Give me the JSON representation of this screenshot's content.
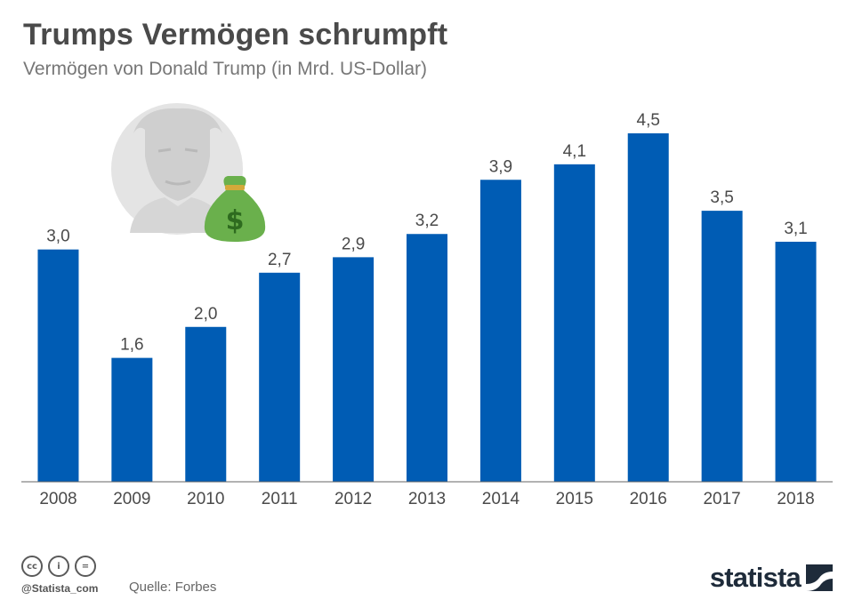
{
  "header": {
    "title": "Trumps Vermögen schrumpft",
    "subtitle": "Vermögen von Donald Trump (in Mrd. US-Dollar)"
  },
  "chart_data": {
    "type": "bar",
    "title": "Trumps Vermögen schrumpft",
    "subtitle": "Vermögen von Donald Trump (in Mrd. US-Dollar)",
    "xlabel": "",
    "ylabel": "",
    "categories": [
      "2008",
      "2009",
      "2010",
      "2011",
      "2012",
      "2013",
      "2014",
      "2015",
      "2016",
      "2017",
      "2018"
    ],
    "values": [
      3.0,
      1.6,
      2.0,
      2.7,
      2.9,
      3.2,
      3.9,
      4.1,
      4.5,
      3.5,
      3.1
    ],
    "value_labels": [
      "3,0",
      "1,6",
      "2,0",
      "2,7",
      "2,9",
      "3,2",
      "3,9",
      "4,1",
      "4,5",
      "3,5",
      "3,1"
    ],
    "ylim": [
      0,
      4.5
    ],
    "grid": false,
    "bar_color": "#005cb4"
  },
  "footer": {
    "cc_icons": [
      "cc-icon",
      "by-icon",
      "nd-icon"
    ],
    "cc_labels": [
      "cc",
      "i",
      "="
    ],
    "handle": "@Statista_com",
    "source": "Quelle: Forbes",
    "brand": "statista"
  },
  "colors": {
    "bar": "#005cb4",
    "title": "#4a4a4a",
    "subtitle": "#777777",
    "axis": "#555555",
    "brand": "#1e2b3a",
    "money_bag": "#6ab04c",
    "portrait": "#e5e5e5"
  }
}
